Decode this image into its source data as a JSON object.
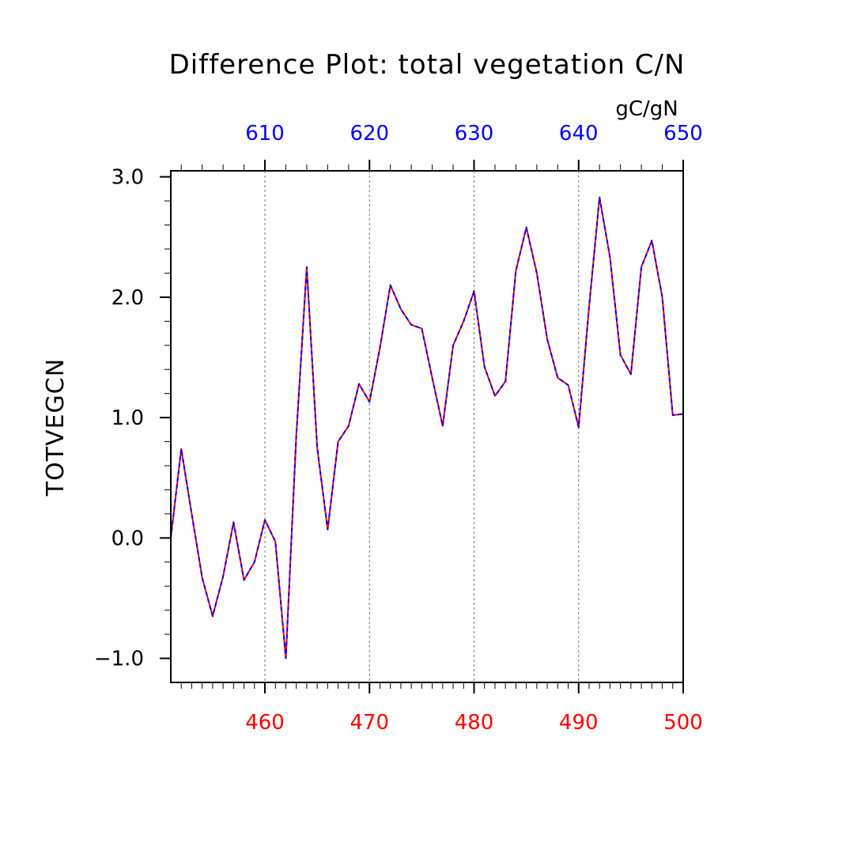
{
  "chart_data": {
    "type": "line",
    "title": "Difference Plot: total vegetation C/N",
    "units": "gC/gN",
    "ylabel": "TOTVEGCN",
    "xlabel": "",
    "xlim_bottom": [
      451,
      500
    ],
    "xlim_top": [
      601,
      650
    ],
    "ylim": [
      -1.2,
      3.05
    ],
    "yticks": [
      -1.0,
      0.0,
      1.0,
      2.0,
      3.0
    ],
    "ytick_labels": [
      "−1.0",
      "0.0",
      "1.0",
      "2.0",
      "3.0"
    ],
    "xticks_bottom": [
      460,
      470,
      480,
      490,
      500
    ],
    "xtick_labels_bottom": [
      "460",
      "470",
      "480",
      "490",
      "500"
    ],
    "xticks_top": [
      610,
      620,
      630,
      640,
      650
    ],
    "xtick_labels_top": [
      "610",
      "620",
      "630",
      "640",
      "650"
    ],
    "vertical_gridlines": [
      460,
      470,
      480,
      490
    ],
    "x": [
      451,
      452,
      453,
      454,
      455,
      456,
      457,
      458,
      459,
      460,
      461,
      462,
      463,
      464,
      465,
      466,
      467,
      468,
      469,
      470,
      471,
      472,
      473,
      474,
      475,
      476,
      477,
      478,
      479,
      480,
      481,
      482,
      483,
      484,
      485,
      486,
      487,
      488,
      489,
      490,
      491,
      492,
      493,
      494,
      495,
      496,
      497,
      498,
      499,
      500
    ],
    "series": [
      {
        "name": "bottom-axis series",
        "color": "#ff0000",
        "axis": "bottom",
        "values": [
          0.0,
          0.74,
          0.2,
          -0.33,
          -0.65,
          -0.32,
          0.13,
          -0.35,
          -0.2,
          0.15,
          -0.03,
          -1.0,
          0.85,
          2.25,
          0.75,
          0.07,
          0.8,
          0.93,
          1.28,
          1.13,
          1.58,
          2.1,
          1.9,
          1.77,
          1.74,
          1.33,
          0.93,
          1.6,
          1.8,
          2.05,
          1.42,
          1.18,
          1.3,
          2.22,
          2.58,
          2.2,
          1.65,
          1.33,
          1.27,
          0.92,
          1.92,
          2.83,
          2.33,
          1.52,
          1.36,
          2.25,
          2.47,
          2.0,
          1.02,
          1.03
        ]
      },
      {
        "name": "top-axis series",
        "color": "#0000ff",
        "axis": "top",
        "values": [
          0.0,
          0.74,
          0.2,
          -0.33,
          -0.65,
          -0.32,
          0.13,
          -0.35,
          -0.2,
          0.15,
          -0.03,
          -1.0,
          0.85,
          2.25,
          0.75,
          0.07,
          0.8,
          0.93,
          1.28,
          1.13,
          1.58,
          2.1,
          1.9,
          1.77,
          1.74,
          1.33,
          0.93,
          1.6,
          1.8,
          2.05,
          1.42,
          1.18,
          1.3,
          2.22,
          2.58,
          2.2,
          1.65,
          1.33,
          1.27,
          0.92,
          1.92,
          2.83,
          2.33,
          1.52,
          1.36,
          2.25,
          2.47,
          2.0,
          1.02,
          1.03
        ]
      }
    ],
    "grid": "vertical-dashed"
  }
}
